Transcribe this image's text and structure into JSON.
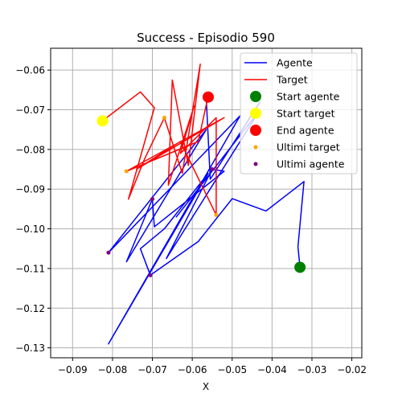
{
  "chart_data": {
    "type": "line",
    "title": "Success - Episodio 590",
    "xlabel": "X",
    "ylabel": "",
    "xlim": [
      -0.0955,
      -0.0175
    ],
    "ylim": [
      -0.1325,
      -0.0545
    ],
    "xticks": [
      -0.09,
      -0.08,
      -0.07,
      -0.06,
      -0.05,
      -0.04,
      -0.03,
      -0.02
    ],
    "yticks": [
      -0.06,
      -0.07,
      -0.08,
      -0.09,
      -0.1,
      -0.11,
      -0.12,
      -0.13
    ],
    "xtick_labels": [
      "−0.09",
      "−0.08",
      "−0.07",
      "−0.06",
      "−0.05",
      "−0.04",
      "−0.03",
      "−0.02"
    ],
    "ytick_labels": [
      "−0.06",
      "−0.07",
      "−0.08",
      "−0.09",
      "−0.10",
      "−0.11",
      "−0.12",
      "−0.13"
    ],
    "grid": true,
    "legend_position": "top-right",
    "colors": {
      "agent": "#0000ff",
      "target": "#ff0000",
      "start_agent": "#008000",
      "start_target": "#ffff00",
      "end_agent": "#ff0000",
      "last_target": "#ffa500",
      "last_agent": "#800080"
    },
    "series": [
      {
        "name": "Agente",
        "kind": "line",
        "points": [
          [
            -0.033,
            -0.1097
          ],
          [
            -0.0335,
            -0.1045
          ],
          [
            -0.032,
            -0.0881
          ],
          [
            -0.0415,
            -0.0955
          ],
          [
            -0.05,
            -0.0924
          ],
          [
            -0.0585,
            -0.1032
          ],
          [
            -0.0705,
            -0.1117
          ],
          [
            -0.073,
            -0.105
          ],
          [
            -0.067,
            -0.1
          ],
          [
            -0.056,
            -0.086
          ],
          [
            -0.081,
            -0.129
          ],
          [
            -0.048,
            -0.0715
          ],
          [
            -0.081,
            -0.106
          ],
          [
            -0.0565,
            -0.075
          ],
          [
            -0.0765,
            -0.1083
          ],
          [
            -0.07,
            -0.0925
          ],
          [
            -0.0695,
            -0.0995
          ],
          [
            -0.052,
            -0.0855
          ],
          [
            -0.055,
            -0.085
          ],
          [
            -0.0665,
            -0.1075
          ],
          [
            -0.043,
            -0.07
          ],
          [
            -0.064,
            -0.097
          ],
          [
            -0.05,
            -0.079
          ],
          [
            -0.043,
            -0.068
          ],
          [
            -0.0555,
            -0.0875
          ],
          [
            -0.0565,
            -0.067
          ]
        ]
      },
      {
        "name": "Target",
        "kind": "line",
        "points": [
          [
            -0.0825,
            -0.0728
          ],
          [
            -0.073,
            -0.0655
          ],
          [
            -0.0695,
            -0.0695
          ],
          [
            -0.076,
            -0.0925
          ],
          [
            -0.072,
            -0.0825
          ],
          [
            -0.067,
            -0.072
          ],
          [
            -0.0625,
            -0.086
          ],
          [
            -0.058,
            -0.0585
          ],
          [
            -0.061,
            -0.084
          ],
          [
            -0.065,
            -0.0625
          ],
          [
            -0.066,
            -0.089
          ],
          [
            -0.0595,
            -0.069
          ],
          [
            -0.063,
            -0.081
          ],
          [
            -0.054,
            -0.072
          ],
          [
            -0.054,
            -0.0965
          ],
          [
            -0.063,
            -0.078
          ],
          [
            -0.074,
            -0.085
          ],
          [
            -0.052,
            -0.072
          ],
          [
            -0.0765,
            -0.0855
          ],
          [
            -0.0585,
            -0.078
          ],
          [
            -0.056,
            -0.0665
          ]
        ]
      },
      {
        "name": "Start agente",
        "kind": "marker",
        "points": [
          [
            -0.033,
            -0.1097
          ]
        ]
      },
      {
        "name": "Start target",
        "kind": "marker",
        "points": [
          [
            -0.0825,
            -0.0728
          ]
        ]
      },
      {
        "name": "End agente",
        "kind": "marker",
        "points": [
          [
            -0.056,
            -0.0668
          ]
        ]
      },
      {
        "name": "Ultimi target",
        "kind": "scatter",
        "points": [
          [
            -0.0765,
            -0.0855
          ],
          [
            -0.067,
            -0.072
          ],
          [
            -0.054,
            -0.0965
          ],
          [
            -0.0555,
            -0.067
          ]
        ]
      },
      {
        "name": "Ultimi agente",
        "kind": "scatter",
        "points": [
          [
            -0.081,
            -0.106
          ],
          [
            -0.07,
            -0.0925
          ],
          [
            -0.0705,
            -0.1117
          ],
          [
            -0.055,
            -0.085
          ]
        ]
      }
    ]
  }
}
